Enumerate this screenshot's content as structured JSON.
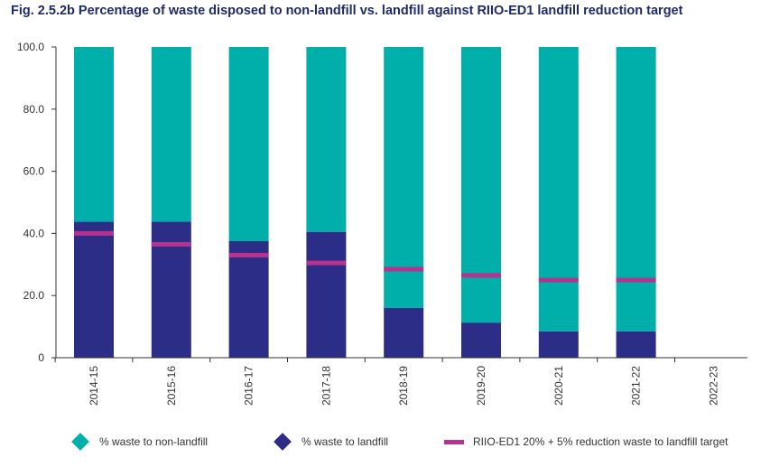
{
  "chart_data": {
    "type": "bar",
    "stacked": true,
    "title": "Fig. 2.5.2b Percentage of waste disposed to non-landfill vs. landfill against RIIO-ED1 landfill reduction target",
    "xlabel": "",
    "ylabel": "",
    "ylim": [
      0,
      100
    ],
    "yticks": [
      "100.0",
      "80.0",
      "60.0",
      "40.0",
      "20.0",
      "0"
    ],
    "grid": false,
    "legend_position": "bottom",
    "categories": [
      "2014-15",
      "2015-16",
      "2016-17",
      "2017-18",
      "2018-19",
      "2019-20",
      "2020-21",
      "2021-22",
      "2022-23"
    ],
    "series": [
      {
        "name": "% waste to landfill",
        "color": "#2b2d86",
        "values": [
          43.8,
          43.8,
          37.5,
          40.5,
          16.0,
          11.3,
          8.5,
          8.5,
          null
        ]
      },
      {
        "name": "% waste to non-landfill",
        "color": "#00afaa",
        "values": [
          56.2,
          56.2,
          62.5,
          59.5,
          84.0,
          88.7,
          91.5,
          91.5,
          null
        ]
      }
    ],
    "target": {
      "name": "RIIO-ED1 20% + 5% reduction waste to landfill target",
      "color": "#b5338f",
      "values": [
        40.0,
        36.5,
        33.0,
        30.5,
        28.5,
        26.5,
        25.0,
        25.0,
        null
      ]
    },
    "legend_order": [
      "% waste to non-landfill",
      "% waste to landfill",
      "RIIO-ED1 20% + 5% reduction waste to landfill target"
    ]
  }
}
